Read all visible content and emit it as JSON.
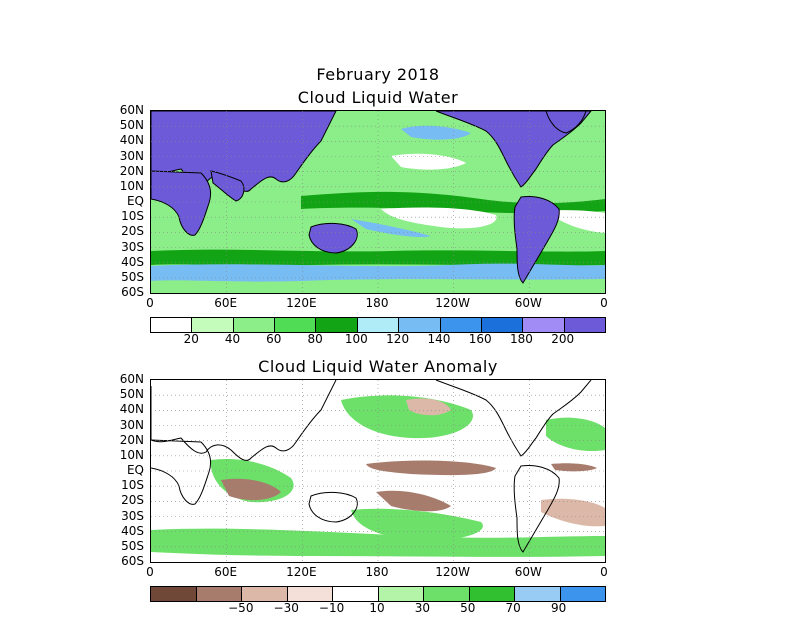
{
  "header": {
    "date_title": "February 2018"
  },
  "panel_top": {
    "title": "Cloud Liquid Water",
    "lat_labels": [
      "60N",
      "50N",
      "40N",
      "30N",
      "20N",
      "10N",
      "EQ",
      "10S",
      "20S",
      "30S",
      "40S",
      "50S",
      "60S"
    ],
    "lon_labels": [
      "0",
      "60E",
      "120E",
      "180",
      "120W",
      "60W",
      "0"
    ],
    "colorbar": {
      "colors": [
        "#ffffff",
        "#c4fcbc",
        "#8cee88",
        "#50dc54",
        "#12a414",
        "#b0ecf8",
        "#78bcf4",
        "#3c94ec",
        "#1c70dc",
        "#a08cf4",
        "#6c5ad8"
      ],
      "labels": [
        "20",
        "40",
        "60",
        "80",
        "100",
        "120",
        "140",
        "160",
        "180",
        "200"
      ]
    }
  },
  "panel_bottom": {
    "title": "Cloud Liquid Water Anomaly",
    "lat_labels": [
      "60N",
      "50N",
      "40N",
      "30N",
      "20N",
      "10N",
      "EQ",
      "10S",
      "20S",
      "30S",
      "40S",
      "50S",
      "60S"
    ],
    "lon_labels": [
      "0",
      "60E",
      "120E",
      "180",
      "120W",
      "60W",
      "0"
    ],
    "colorbar": {
      "colors": [
        "#704838",
        "#a87c6c",
        "#dcb8a8",
        "#f4e0d8",
        "#ffffff",
        "#b4f4a8",
        "#6ce068",
        "#30c030",
        "#98ccf4",
        "#3c94ec"
      ],
      "labels": [
        "−50",
        "−30",
        "−10",
        "10",
        "30",
        "50",
        "70",
        "90"
      ]
    }
  },
  "map_colors": {
    "land_mask": "#6c5ad8",
    "ocean_base": "#8cee88",
    "ocean_high": "#12a414",
    "ocean_low": "#ffffff",
    "storm_track": "#78bcf4",
    "anom_pos": "#6ce068",
    "anom_neg": "#a87c6c",
    "anom_light_neg": "#dcb8a8",
    "coast": "#000000",
    "grid": "#888888"
  }
}
